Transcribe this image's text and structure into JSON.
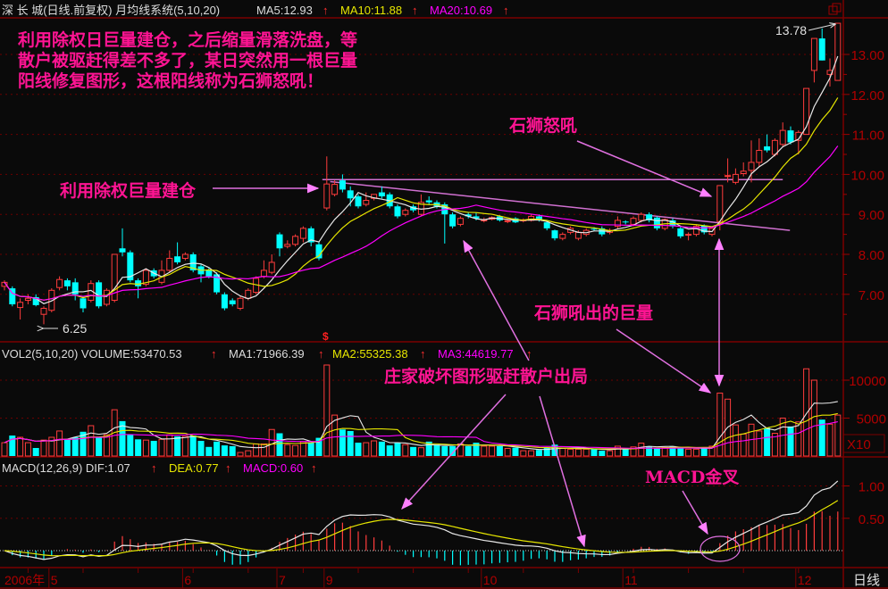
{
  "header": {
    "title": "深 长 城(日线.前复权) 月均线系统(5,10,20)",
    "ma5": "MA5:12.93",
    "ma10": "MA10:11.88",
    "ma20": "MA20:10.69"
  },
  "volume_header": {
    "title": "VOL2(5,10,20) VOLUME:53470.53",
    "ma1": "MA1:71966.39",
    "ma2": "MA2:55325.38",
    "ma3": "MA3:44619.77"
  },
  "macd_header": {
    "title": "MACD(12,26,9) DIF:1.07",
    "dea": "DEA:0.77",
    "macd": "MACD:0.60"
  },
  "annotations": {
    "intro_line1": "利用除权日巨量建仓，之后缩量滑落洗盘，等",
    "intro_line2": "散户被驱赶得差不多了，某日突然用一根巨量",
    "intro_line3": "阳线修复图形，这根阳线称为石狮怒吼！",
    "build_position": "利用除权巨量建仓",
    "lion_roar": "石狮怒吼",
    "lion_volume": "石狮吼出的巨量",
    "shakeout": "庄家破坏图形驱赶散户出局",
    "macd_cross": "MACD金叉",
    "high_label": "13.78",
    "low_label": "6.25",
    "ex_rights_mark": "$"
  },
  "footer": {
    "period": "日线"
  },
  "colors": {
    "up": "#ff3c3c",
    "down": "#00ffff",
    "ma5": "#e8e8e8",
    "ma10": "#e6e600",
    "ma20": "#ff00ff",
    "axis": "#b00000",
    "annotation": "#ff1493",
    "arrow": "#e070e0"
  },
  "chart_data": {
    "type": "candlestick",
    "price_axis": {
      "ylim": [
        6.0,
        14.0
      ],
      "ticks": [
        "7.00",
        "8.00",
        "9.00",
        "10.00",
        "11.00",
        "12.00",
        "13.00"
      ]
    },
    "volume_axis": {
      "ticks": [
        "5000",
        "10000"
      ],
      "multiplier": "X10"
    },
    "macd_axis": {
      "ticks": [
        "0.50",
        "1.00"
      ]
    },
    "x_axis_labels": [
      {
        "label": "2006年",
        "index": 0
      },
      {
        "label": "5",
        "index": 6
      },
      {
        "label": "6",
        "index": 23
      },
      {
        "label": "7",
        "index": 35
      },
      {
        "label": "9",
        "index": 41
      },
      {
        "label": "10",
        "index": 61
      },
      {
        "label": "11",
        "index": 79
      },
      {
        "label": "12",
        "index": 101
      }
    ],
    "ohlc": [
      [
        7.2,
        7.35,
        7.1,
        7.3
      ],
      [
        7.15,
        7.2,
        6.7,
        6.75
      ],
      [
        6.67,
        6.9,
        6.37,
        6.8
      ],
      [
        6.85,
        7.0,
        6.75,
        6.9
      ],
      [
        6.93,
        7.0,
        6.7,
        6.73
      ],
      [
        6.5,
        6.7,
        6.25,
        6.65
      ],
      [
        6.6,
        7.15,
        6.55,
        7.1
      ],
      [
        7.17,
        7.45,
        7.1,
        7.37
      ],
      [
        7.35,
        7.4,
        7.1,
        7.2
      ],
      [
        7.3,
        7.4,
        6.85,
        7.0
      ],
      [
        6.9,
        6.95,
        6.55,
        6.65
      ],
      [
        6.85,
        7.35,
        6.8,
        7.27
      ],
      [
        7.3,
        7.35,
        6.65,
        6.7
      ],
      [
        6.75,
        7.15,
        6.7,
        7.1
      ],
      [
        6.85,
        8.0,
        6.8,
        8.0
      ],
      [
        8.15,
        8.65,
        7.95,
        8.05
      ],
      [
        8.05,
        8.1,
        7.3,
        7.35
      ],
      [
        7.35,
        7.4,
        6.9,
        7.2
      ],
      [
        7.25,
        7.65,
        7.2,
        7.6
      ],
      [
        7.6,
        7.65,
        7.4,
        7.45
      ],
      [
        7.3,
        7.85,
        7.25,
        7.6
      ],
      [
        7.6,
        8.1,
        7.55,
        7.9
      ],
      [
        7.95,
        8.3,
        7.75,
        7.8
      ],
      [
        7.9,
        8.05,
        7.85,
        8.0
      ],
      [
        8.0,
        8.05,
        7.55,
        7.6
      ],
      [
        7.7,
        7.75,
        7.3,
        7.5
      ],
      [
        7.6,
        7.65,
        7.4,
        7.45
      ],
      [
        7.5,
        7.55,
        7.0,
        7.05
      ],
      [
        7.0,
        7.05,
        6.6,
        6.65
      ],
      [
        6.85,
        6.9,
        6.7,
        6.75
      ],
      [
        6.65,
        6.95,
        6.6,
        6.9
      ],
      [
        6.9,
        7.15,
        6.85,
        7.1
      ],
      [
        7.05,
        7.45,
        7.0,
        7.4
      ],
      [
        7.45,
        7.85,
        7.4,
        7.6
      ],
      [
        7.55,
        8.0,
        7.5,
        7.8
      ],
      [
        8.5,
        8.55,
        7.95,
        8.15
      ],
      [
        8.2,
        8.35,
        8.15,
        8.25
      ],
      [
        8.25,
        8.5,
        8.2,
        8.45
      ],
      [
        8.4,
        8.7,
        8.3,
        8.65
      ],
      [
        8.65,
        8.7,
        8.2,
        8.3
      ],
      [
        8.25,
        8.3,
        7.85,
        7.9
      ],
      [
        9.16,
        10.45,
        9.1,
        9.76
      ],
      [
        9.5,
        9.85,
        9.45,
        9.75
      ],
      [
        9.85,
        10.0,
        9.55,
        9.62
      ],
      [
        9.6,
        9.7,
        9.2,
        9.4
      ],
      [
        9.45,
        9.5,
        9.15,
        9.2
      ],
      [
        9.25,
        9.55,
        9.2,
        9.35
      ],
      [
        9.4,
        9.5,
        9.35,
        9.5
      ],
      [
        9.55,
        9.7,
        9.4,
        9.45
      ],
      [
        9.5,
        9.55,
        9.15,
        9.2
      ],
      [
        9.2,
        9.25,
        8.9,
        8.95
      ],
      [
        9.0,
        9.15,
        8.95,
        9.1
      ],
      [
        9.2,
        9.25,
        9.05,
        9.1
      ],
      [
        9.0,
        9.5,
        8.95,
        9.3
      ],
      [
        9.35,
        9.45,
        9.25,
        9.3
      ],
      [
        9.3,
        9.35,
        9.15,
        9.2
      ],
      [
        9.25,
        9.3,
        8.27,
        9.0
      ],
      [
        9.0,
        9.05,
        8.65,
        8.7
      ],
      [
        8.75,
        8.95,
        8.7,
        8.9
      ],
      [
        9.0,
        9.05,
        8.9,
        8.95
      ],
      [
        8.95,
        9.05,
        8.85,
        8.9
      ],
      [
        8.85,
        8.92,
        8.8,
        8.86
      ],
      [
        8.88,
        8.95,
        8.85,
        8.92
      ],
      [
        8.95,
        8.98,
        8.82,
        8.85
      ],
      [
        8.83,
        8.88,
        8.78,
        8.84
      ],
      [
        8.9,
        8.93,
        8.78,
        8.8
      ],
      [
        8.84,
        8.9,
        8.8,
        8.86
      ],
      [
        8.85,
        9.0,
        8.82,
        8.95
      ],
      [
        8.95,
        9.0,
        8.82,
        8.85
      ],
      [
        8.8,
        8.82,
        8.6,
        8.65
      ],
      [
        8.6,
        8.62,
        8.35,
        8.4
      ],
      [
        8.4,
        8.55,
        8.35,
        8.5
      ],
      [
        8.55,
        8.7,
        8.5,
        8.65
      ],
      [
        8.4,
        8.6,
        8.35,
        8.55
      ],
      [
        8.5,
        8.65,
        8.45,
        8.6
      ],
      [
        8.64,
        8.68,
        8.58,
        8.62
      ],
      [
        8.65,
        8.7,
        8.45,
        8.5
      ],
      [
        8.55,
        8.65,
        8.5,
        8.6
      ],
      [
        8.7,
        8.95,
        8.65,
        8.85
      ],
      [
        8.82,
        8.85,
        8.75,
        8.8
      ],
      [
        8.75,
        8.95,
        8.7,
        8.9
      ],
      [
        8.85,
        9.05,
        8.8,
        9.0
      ],
      [
        9.0,
        9.05,
        8.8,
        8.85
      ],
      [
        8.92,
        8.95,
        8.6,
        8.65
      ],
      [
        8.65,
        8.9,
        8.6,
        8.87
      ],
      [
        8.85,
        8.9,
        8.65,
        8.7
      ],
      [
        8.65,
        8.7,
        8.4,
        8.45
      ],
      [
        8.48,
        8.55,
        8.35,
        8.5
      ],
      [
        8.5,
        8.75,
        8.45,
        8.7
      ],
      [
        8.72,
        8.75,
        8.5,
        8.55
      ],
      [
        8.5,
        8.7,
        8.45,
        8.65
      ],
      [
        8.82,
        9.72,
        8.6,
        9.72
      ],
      [
        9.95,
        10.4,
        9.8,
        9.97
      ],
      [
        9.8,
        10.15,
        9.75,
        10.0
      ],
      [
        10.02,
        10.3,
        9.95,
        10.08
      ],
      [
        10.1,
        10.85,
        9.8,
        10.3
      ],
      [
        10.3,
        10.9,
        10.2,
        10.6
      ],
      [
        10.7,
        11.0,
        10.55,
        10.6
      ],
      [
        10.5,
        10.9,
        10.45,
        10.85
      ],
      [
        10.75,
        11.3,
        10.7,
        11.1
      ],
      [
        11.1,
        11.2,
        10.75,
        10.8
      ],
      [
        10.85,
        11.1,
        10.5,
        11.05
      ],
      [
        11.0,
        12.15,
        11.0,
        12.15
      ],
      [
        12.6,
        13.4,
        12.3,
        13.4
      ],
      [
        13.4,
        13.65,
        12.85,
        12.85
      ],
      [
        12.5,
        12.9,
        12.2,
        12.6
      ],
      [
        12.35,
        13.78,
        12.35,
        13.78
      ]
    ],
    "volume": [
      1760,
      2700,
      2470,
      1760,
      1060,
      2100,
      2470,
      3300,
      2200,
      2470,
      3200,
      4000,
      2470,
      2800,
      6100,
      4600,
      2800,
      2200,
      2100,
      2000,
      2200,
      2800,
      2600,
      2600,
      2700,
      2000,
      1200,
      1900,
      1400,
      1300,
      470,
      700,
      1600,
      1600,
      3500,
      3000,
      1500,
      1400,
      1900,
      1800,
      2400,
      12000,
      5400,
      3500,
      3300,
      1760,
      1760,
      2000,
      1900,
      1400,
      1760,
      1500,
      1200,
      1100,
      1900,
      1500,
      1300,
      1300,
      1600,
      1300,
      1760,
      1300,
      1300,
      1300,
      1000,
      1100,
      700,
      700,
      800,
      1100,
      1500,
      1000,
      900,
      900,
      900,
      1000,
      700,
      700,
      1300,
      900,
      1200,
      1700,
      1300,
      1000,
      1100,
      1300,
      1000,
      900,
      900,
      1000,
      1300,
      8300,
      7500,
      4100,
      2900,
      4200,
      3300,
      3700,
      3000,
      5000,
      3900,
      4500,
      11500,
      10000,
      4800,
      4200,
      5400
    ],
    "price_ma_periods": [
      5,
      10,
      20
    ],
    "volume_ma_periods": [
      5,
      10,
      20
    ],
    "macd_params": [
      12,
      26,
      9
    ],
    "trendlines": [
      {
        "name": "resistance-flat",
        "from": {
          "index": 41,
          "price": 9.87
        },
        "to": {
          "index": 99,
          "price": 9.87
        }
      },
      {
        "name": "descending",
        "from": {
          "index": 42,
          "price": 9.82
        },
        "to": {
          "index": 99,
          "price": 8.6
        }
      }
    ]
  }
}
